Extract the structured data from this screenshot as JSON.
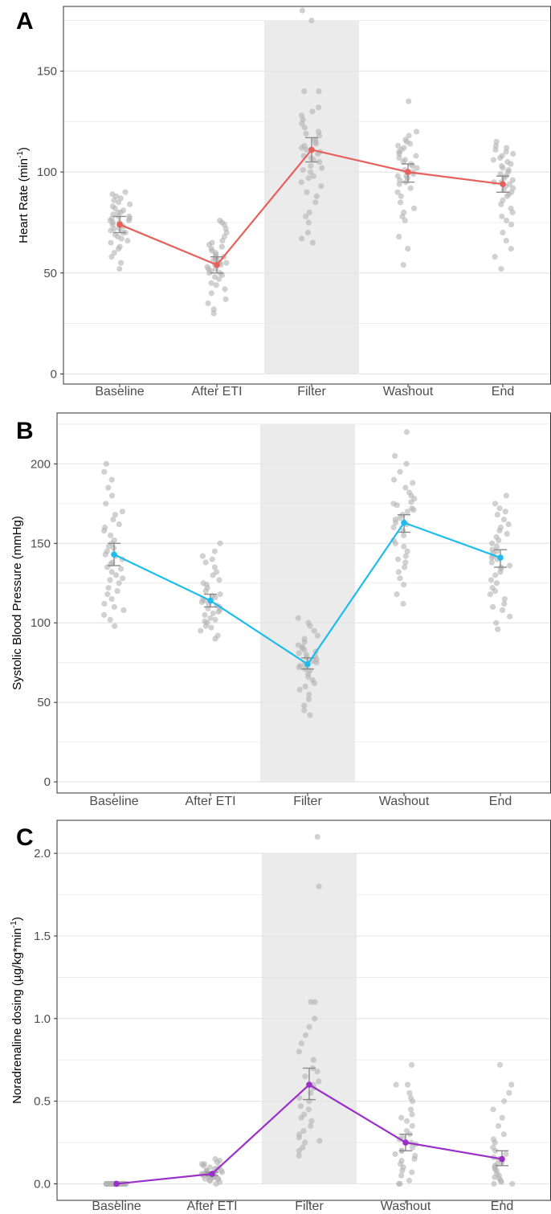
{
  "colors": {
    "points": "#b3b3b3",
    "errorbar": "#8c8c8c",
    "shade": "#ebebeb",
    "grid": "#e6e6e6",
    "axis_text": "#4d4d4d"
  },
  "chart_data": [
    {
      "type": "scatter",
      "panel_label": "A",
      "ylabel_main": "Heart Rate (min",
      "ylabel_sup": "-1",
      "ylabel_tail": ")",
      "categories": [
        "Baseline",
        "After ETI",
        "Filter",
        "Washout",
        "End"
      ],
      "yticks": [
        0,
        50,
        100,
        150
      ],
      "ylim": [
        -5,
        182
      ],
      "grid_minor": [
        25,
        75,
        125,
        175
      ],
      "shade_category": "Filter",
      "shade_range": [
        0,
        175
      ],
      "line_color": "#e8605b",
      "means": [
        74,
        54,
        111,
        100,
        94
      ],
      "error_lower": [
        70,
        50,
        105,
        95,
        90
      ],
      "error_upper": [
        78,
        58,
        117,
        104,
        98
      ],
      "points": [
        [
          52,
          55,
          58,
          60,
          62,
          63,
          65,
          66,
          67,
          68,
          69,
          70,
          70,
          71,
          72,
          72,
          73,
          74,
          74,
          75,
          75,
          76,
          76,
          77,
          77,
          78,
          78,
          79,
          80,
          80,
          81,
          82,
          83,
          84,
          85,
          86,
          87,
          88,
          89,
          90
        ],
        [
          30,
          32,
          35,
          37,
          40,
          42,
          44,
          45,
          47,
          48,
          49,
          50,
          50,
          51,
          52,
          52,
          53,
          54,
          54,
          55,
          55,
          56,
          57,
          57,
          58,
          58,
          59,
          60,
          61,
          62,
          63,
          64,
          65,
          66,
          68,
          70,
          72,
          74,
          75,
          76
        ],
        [
          65,
          67,
          70,
          75,
          78,
          80,
          85,
          88,
          90,
          93,
          95,
          97,
          98,
          100,
          101,
          102,
          103,
          105,
          106,
          107,
          108,
          109,
          110,
          111,
          112,
          113,
          114,
          115,
          116,
          118,
          119,
          120,
          122,
          124,
          126,
          128,
          130,
          132,
          140,
          140,
          175,
          180
        ],
        [
          54,
          62,
          68,
          76,
          78,
          80,
          82,
          85,
          88,
          90,
          92,
          94,
          95,
          96,
          97,
          98,
          98,
          99,
          100,
          100,
          101,
          102,
          103,
          104,
          105,
          106,
          107,
          108,
          109,
          110,
          111,
          112,
          113,
          114,
          115,
          116,
          118,
          120,
          135
        ],
        [
          52,
          58,
          62,
          66,
          70,
          74,
          76,
          78,
          80,
          82,
          84,
          86,
          88,
          89,
          90,
          91,
          92,
          93,
          94,
          95,
          95,
          96,
          97,
          98,
          99,
          100,
          101,
          102,
          103,
          104,
          105,
          106,
          107,
          108,
          109,
          110,
          111,
          112,
          113,
          115
        ]
      ]
    },
    {
      "type": "scatter",
      "panel_label": "B",
      "ylabel_main": "Systolic Blood Pressure (mmHg)",
      "ylabel_sup": "",
      "ylabel_tail": "",
      "categories": [
        "Baseline",
        "After ETI",
        "Filter",
        "Washout",
        "End"
      ],
      "yticks": [
        0,
        50,
        100,
        150,
        200
      ],
      "ylim": [
        -7,
        232
      ],
      "grid_minor": [
        25,
        75,
        125,
        175,
        225
      ],
      "shade_category": "Filter",
      "shade_range": [
        0,
        225
      ],
      "line_color": "#1ebcee",
      "means": [
        143,
        114,
        74,
        163,
        141
      ],
      "error_lower": [
        136,
        110,
        71,
        157,
        135
      ],
      "error_upper": [
        150,
        118,
        78,
        168,
        146
      ],
      "points": [
        [
          98,
          102,
          105,
          108,
          110,
          112,
          115,
          118,
          120,
          122,
          125,
          127,
          128,
          130,
          132,
          134,
          135,
          137,
          138,
          140,
          142,
          143,
          145,
          147,
          148,
          150,
          152,
          155,
          158,
          160,
          162,
          165,
          168,
          170,
          175,
          180,
          185,
          190,
          195,
          200
        ],
        [
          90,
          92,
          95,
          97,
          98,
          100,
          101,
          102,
          103,
          105,
          106,
          107,
          108,
          109,
          110,
          111,
          112,
          113,
          114,
          115,
          116,
          117,
          118,
          120,
          122,
          124,
          125,
          127,
          130,
          132,
          135,
          138,
          140,
          142,
          145,
          150
        ],
        [
          42,
          45,
          48,
          52,
          55,
          58,
          60,
          62,
          64,
          66,
          68,
          70,
          71,
          72,
          73,
          74,
          75,
          76,
          77,
          78,
          79,
          80,
          81,
          82,
          83,
          84,
          85,
          86,
          88,
          90,
          92,
          95,
          98,
          100,
          103
        ],
        [
          112,
          118,
          124,
          128,
          132,
          135,
          138,
          140,
          142,
          145,
          148,
          150,
          152,
          155,
          158,
          160,
          162,
          163,
          165,
          166,
          168,
          170,
          171,
          172,
          174,
          175,
          176,
          178,
          180,
          182,
          185,
          188,
          190,
          195,
          200,
          205,
          220
        ],
        [
          96,
          100,
          104,
          108,
          110,
          112,
          115,
          118,
          120,
          122,
          125,
          127,
          130,
          132,
          134,
          135,
          136,
          138,
          140,
          141,
          142,
          144,
          145,
          146,
          148,
          150,
          152,
          154,
          156,
          158,
          160,
          162,
          165,
          168,
          170,
          172,
          175,
          180
        ]
      ]
    },
    {
      "type": "scatter",
      "panel_label": "C",
      "ylabel_main": "Noradrenaline dosing (µg/kg*min",
      "ylabel_sup": "-1",
      "ylabel_tail": ")",
      "categories": [
        "Baseline",
        "After ETI",
        "Filter",
        "Washout",
        "End"
      ],
      "yticks": [
        0.0,
        0.5,
        1.0,
        1.5,
        2.0
      ],
      "ytick_labels": [
        "0.0",
        "0.5",
        "1.0",
        "1.5",
        "2.0"
      ],
      "ylim": [
        -0.1,
        2.2
      ],
      "grid_minor": [
        0.25,
        0.75,
        1.25,
        1.75
      ],
      "shade_category": "Filter",
      "shade_range": [
        0,
        2.0
      ],
      "line_color": "#9b30c8",
      "means": [
        0.0,
        0.06,
        0.6,
        0.25,
        0.15
      ],
      "error_lower": [
        0.0,
        0.05,
        0.51,
        0.2,
        0.11
      ],
      "error_upper": [
        0.0,
        0.07,
        0.7,
        0.3,
        0.2
      ],
      "points": [
        [
          0,
          0,
          0,
          0,
          0,
          0,
          0,
          0,
          0,
          0,
          0,
          0,
          0,
          0,
          0,
          0,
          0,
          0,
          0,
          0,
          0,
          0,
          0,
          0,
          0,
          0,
          0,
          0,
          0,
          0,
          0,
          0,
          0,
          0,
          0,
          0,
          0,
          0,
          0,
          0
        ],
        [
          0.0,
          0.01,
          0.02,
          0.02,
          0.03,
          0.03,
          0.03,
          0.04,
          0.04,
          0.04,
          0.05,
          0.05,
          0.05,
          0.05,
          0.06,
          0.06,
          0.06,
          0.06,
          0.07,
          0.07,
          0.07,
          0.08,
          0.08,
          0.08,
          0.09,
          0.09,
          0.1,
          0.1,
          0.11,
          0.12,
          0.12,
          0.13,
          0.14,
          0.15
        ],
        [
          0.17,
          0.2,
          0.22,
          0.25,
          0.26,
          0.28,
          0.3,
          0.32,
          0.35,
          0.38,
          0.4,
          0.42,
          0.45,
          0.47,
          0.5,
          0.52,
          0.55,
          0.58,
          0.6,
          0.62,
          0.65,
          0.68,
          0.7,
          0.75,
          0.8,
          0.85,
          0.9,
          0.95,
          1.0,
          1.1,
          1.1,
          1.8,
          2.1
        ],
        [
          0.0,
          0.0,
          0.02,
          0.05,
          0.07,
          0.08,
          0.1,
          0.12,
          0.14,
          0.15,
          0.17,
          0.18,
          0.2,
          0.2,
          0.22,
          0.24,
          0.25,
          0.27,
          0.28,
          0.3,
          0.32,
          0.35,
          0.38,
          0.4,
          0.42,
          0.45,
          0.5,
          0.52,
          0.55,
          0.6,
          0.6,
          0.72
        ],
        [
          0.0,
          0.0,
          0.01,
          0.02,
          0.03,
          0.04,
          0.05,
          0.06,
          0.08,
          0.09,
          0.1,
          0.11,
          0.12,
          0.13,
          0.15,
          0.16,
          0.18,
          0.2,
          0.22,
          0.25,
          0.27,
          0.3,
          0.35,
          0.4,
          0.45,
          0.5,
          0.55,
          0.6,
          0.72
        ]
      ]
    }
  ]
}
